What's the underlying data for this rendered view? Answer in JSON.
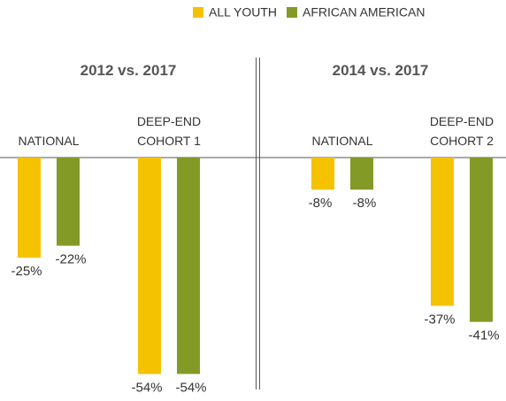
{
  "chart_data": [
    {
      "type": "bar",
      "title": "2012 vs. 2017",
      "categories": [
        "NATIONAL",
        "DEEP-END COHORT 1"
      ],
      "series": [
        {
          "name": "ALL YOUTH",
          "color": "#f5c200",
          "values": [
            -25,
            -54
          ],
          "value_labels": [
            "-25%",
            "-54%"
          ]
        },
        {
          "name": "AFRICAN AMERICAN",
          "color": "#839a27",
          "values": [
            -22,
            -54
          ],
          "value_labels": [
            "-22%",
            "-54%"
          ]
        }
      ],
      "ylim": [
        -55,
        0
      ]
    },
    {
      "type": "bar",
      "title": "2014 vs. 2017",
      "categories": [
        "NATIONAL",
        "DEEP-END COHORT 2"
      ],
      "series": [
        {
          "color": "#f5c200",
          "values": [
            -8,
            -37
          ],
          "value_labels": [
            "-8%",
            "-37%"
          ]
        },
        {
          "color": "#839a27",
          "values": [
            -8,
            -41
          ],
          "value_labels": [
            "-8%",
            "-41%"
          ]
        }
      ],
      "ylim": [
        -55,
        0
      ]
    }
  ]
}
